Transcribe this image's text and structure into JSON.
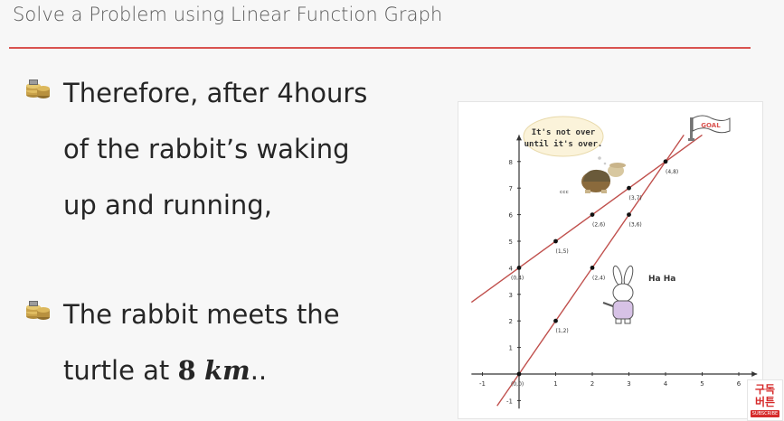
{
  "slide": {
    "title": "Solve a Problem using Linear Function Graph",
    "accent_color": "#d9534f"
  },
  "bullets": [
    {
      "icon": "coins-icon",
      "lines": [
        "Therefore, after 4hours",
        "of the rabbit’s waking",
        "up and running,"
      ]
    },
    {
      "icon": "coins-icon",
      "line1": "The rabbit meets the",
      "line2_prefix": "turtle at ",
      "line2_num": "8",
      "line2_unit": "km",
      "line2_suffix": ".."
    }
  ],
  "figure": {
    "speech_line1": "It's not over",
    "speech_line2": "until it's over.",
    "goal_label": "GOAL",
    "rabbit_label": "Ha  Ha",
    "snore_label": "ᶜᶜᶜ"
  },
  "chart_data": {
    "type": "line",
    "x_ticks": [
      "-1",
      "0",
      "1",
      "2",
      "3",
      "4",
      "5",
      "6"
    ],
    "y_ticks": [
      "-1",
      "0",
      "1",
      "2",
      "3",
      "4",
      "5",
      "6",
      "7",
      "8"
    ],
    "xlim": [
      -1.3,
      6.5
    ],
    "ylim": [
      -1.3,
      9.0
    ],
    "line_color": "#c0504d",
    "series": [
      {
        "points": [
          {
            "x": 0,
            "y": 4,
            "label": "(0,4)"
          },
          {
            "x": 1,
            "y": 5,
            "label": "(1,5)"
          },
          {
            "x": 2,
            "y": 6,
            "label": "(2,6)"
          },
          {
            "x": 3,
            "y": 7,
            "label": "(3,7)"
          },
          {
            "x": 4,
            "y": 8,
            "label": "(4,8)"
          }
        ],
        "line_from": [
          -1.3,
          2.7
        ],
        "line_to": [
          5.0,
          9.0
        ]
      },
      {
        "points": [
          {
            "x": 0,
            "y": 0,
            "label": "(0,0)"
          },
          {
            "x": 1,
            "y": 2,
            "label": "(1,2)"
          },
          {
            "x": 2,
            "y": 4,
            "label": "(2,4)"
          },
          {
            "x": 3,
            "y": 6,
            "label": "(3,6)"
          },
          {
            "x": 4,
            "y": 8,
            "label": "(4,8)"
          }
        ],
        "line_from": [
          -0.6,
          -1.2
        ],
        "line_to": [
          4.5,
          9.0
        ]
      }
    ]
  },
  "badge": {
    "line1": "구독",
    "line2": "버튼",
    "sub": "SUBSCRIBE"
  }
}
